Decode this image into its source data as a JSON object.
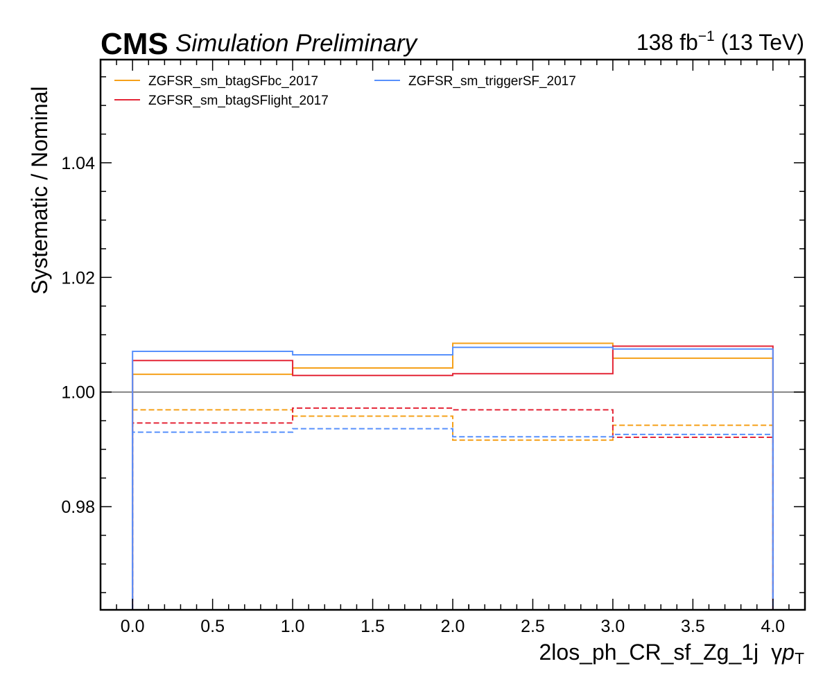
{
  "header": {
    "experiment": "CMS",
    "status": "Simulation Preliminary",
    "lumi_value": "138 fb",
    "lumi_exponent": "−1",
    "energy": " (13 TeV)"
  },
  "chart_data": {
    "type": "line",
    "step": true,
    "xlabel": "2los_ph_CR_sf_Zg_1j",
    "xlabel_variable": "γ",
    "xlabel_variable_symbol": "p",
    "xlabel_variable_subscript": "T",
    "ylabel": "Systematic / Nominal",
    "xlim": [
      -0.2,
      4.2
    ],
    "ylim": [
      0.962,
      1.058
    ],
    "x_ticks": [
      0.0,
      0.5,
      1.0,
      1.5,
      2.0,
      2.5,
      3.0,
      3.5,
      4.0
    ],
    "x_tick_labels": [
      "0.0",
      "0.5",
      "1.0",
      "1.5",
      "2.0",
      "2.5",
      "3.0",
      "3.5",
      "4.0"
    ],
    "y_ticks": [
      0.98,
      1.0,
      1.02,
      1.04
    ],
    "y_tick_labels": [
      "0.98",
      "1.00",
      "1.02",
      "1.04"
    ],
    "reference_line": 1.0,
    "bin_edges": [
      0,
      1,
      2,
      3,
      4
    ],
    "legend_position": "top-left",
    "series": [
      {
        "name": "ZGFSR_sm_btagSFbc_2017",
        "color": "#f5a019",
        "style": "solid",
        "values": [
          1.0031,
          1.0042,
          1.0085,
          1.0059
        ]
      },
      {
        "name": "",
        "color": "#f5a019",
        "style": "dashed",
        "values": [
          0.9969,
          0.9958,
          0.9916,
          0.9942
        ]
      },
      {
        "name": "ZGFSR_sm_btagSFlight_2017",
        "color": "#e42536",
        "style": "solid",
        "values": [
          1.0055,
          1.0029,
          1.0032,
          1.008
        ]
      },
      {
        "name": "",
        "color": "#e42536",
        "style": "dashed",
        "values": [
          0.9946,
          0.9972,
          0.9969,
          0.9921
        ]
      },
      {
        "name": "ZGFSR_sm_triggerSF_2017",
        "color": "#5790fc",
        "style": "solid",
        "values": [
          1.0071,
          1.0065,
          1.0078,
          1.0075
        ]
      },
      {
        "name": "",
        "color": "#5790fc",
        "style": "dashed",
        "values": [
          0.993,
          0.9936,
          0.9922,
          0.9926
        ]
      }
    ]
  }
}
